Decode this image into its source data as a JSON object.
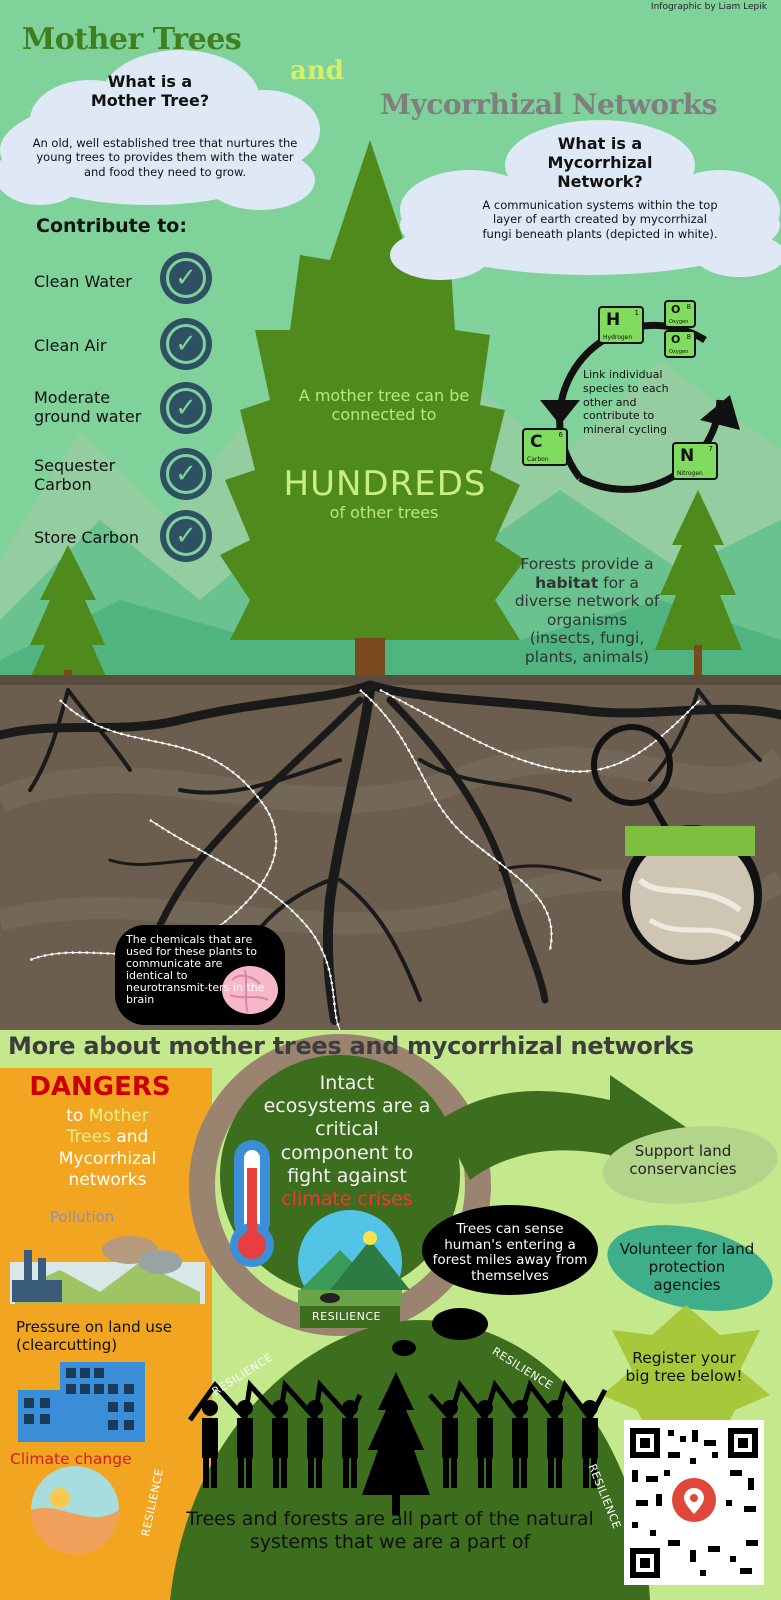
{
  "credit": "Infographic by Liam Lepik",
  "title": {
    "line1": "Mother Trees",
    "line2": "and",
    "line3": "Mycorrhizal Networks"
  },
  "mother_tree_cloud": {
    "heading_line1": "What is a",
    "heading_line2": "Mother Tree?",
    "body": "An old, well established tree that nurtures the young trees to provides them with the water and food they need to grow."
  },
  "myco_cloud": {
    "heading_line1": "What is a",
    "heading_line2": "Mycorrhizal",
    "heading_line3": "Network?",
    "body": "A communication systems within the top layer of earth created by mycorrhizal fungi beneath plants (depicted in white)."
  },
  "contribute": {
    "heading": "Contribute to:",
    "items": [
      "Clean Water",
      "Clean Air",
      "Moderate ground water",
      "Sequester Carbon",
      "Store Carbon"
    ]
  },
  "mother_tree_fact": {
    "line1": "A mother tree can be connected to",
    "big": "HUNDREDS",
    "line2": "of other trees"
  },
  "cycle": {
    "text": "Link individual species to each other and contribute to mineral cycling",
    "elements": [
      {
        "sym": "H",
        "name": "Hydrogen",
        "num": "1"
      },
      {
        "sym": "O",
        "name": "Oxygen",
        "num": "8"
      },
      {
        "sym": "O",
        "name": "Oxygen",
        "num": "8"
      },
      {
        "sym": "C",
        "name": "Carbon",
        "num": "6"
      },
      {
        "sym": "N",
        "name": "Nitrogen",
        "num": "7"
      }
    ]
  },
  "forests": {
    "before": "Forests provide a ",
    "bold": "habitat",
    "after": " for a diverse network of organisms (insects, fungi, plants, animals)"
  },
  "brain_note": "The chemicals that are used for these plants to communicate are identical to neurotransmit-ters in the brain",
  "bottom": {
    "heading": "More about mother trees and mycorrhizal networks",
    "dangers": {
      "title": "DANGERS",
      "to": "to",
      "mother": "Mother",
      "trees": "Trees",
      "and": "and",
      "myco": "Mycorrhizal",
      "networks": "networks",
      "pollution": "Pollution",
      "pressure": "Pressure on land use (clearcutting)",
      "climate": "Climate change"
    },
    "intact": {
      "text": "Intact ecosystems are a critical component to fight against",
      "highlight": "climate crises"
    },
    "sense": "Trees can sense human's entering a forest miles away from themselves",
    "actions": {
      "support": "Support land conservancies",
      "volunteer": "Volunteer for land protection agencies",
      "register": "Register your big tree below!"
    },
    "resilience": "RESILIENCE",
    "footer": "Trees and forests are all part of the natural systems that we are a part of"
  },
  "colors": {
    "sky": "#7fd39a",
    "tree": "#4e8a1c",
    "soil": "#6b5e4e",
    "orange": "#f2a521",
    "lightgreen": "#b8e07a",
    "darkgreen": "#3c6e1e"
  }
}
